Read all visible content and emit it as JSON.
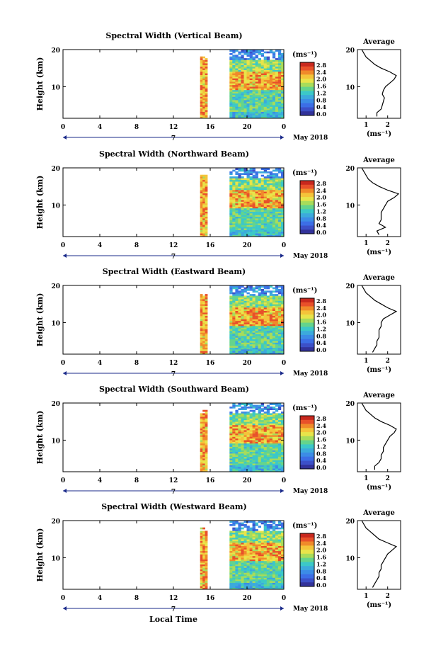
{
  "figure": {
    "xlabel": "Local Time",
    "date_label": "May 2018",
    "day_marker": "7"
  },
  "colorbar": {
    "unit": "(ms⁻¹)",
    "ticks": [
      "2.8",
      "2.4",
      "2.0",
      "1.6",
      "1.2",
      "0.8",
      "0.4",
      "0.0"
    ],
    "colors": [
      "#c8281e",
      "#e8502a",
      "#f08a2a",
      "#f4c43a",
      "#e8e44a",
      "#a8dc5a",
      "#64d48c",
      "#3cc8c8",
      "#3caadc",
      "#3c8ce6",
      "#3c6ee6",
      "#3c50c8",
      "#32329a"
    ]
  },
  "chart_data": [
    {
      "type": "heatmap",
      "title": "Spectral Width (Vertical Beam)",
      "xlabel": "",
      "ylabel": "Height (km)",
      "xlim": [
        0,
        24
      ],
      "ylim": [
        1.5,
        20
      ],
      "xticks": [
        "0",
        "4",
        "8",
        "12",
        "16",
        "20",
        "0"
      ],
      "yticks": [
        "10",
        "20"
      ],
      "data_blocks_hours": [
        [
          14.9,
          15.7
        ],
        [
          18.1,
          24.0
        ]
      ],
      "z_unit": "ms-1",
      "zlim": [
        0.0,
        2.8
      ],
      "profile": {
        "title": "Average",
        "xlabel": "(ms⁻¹)",
        "xticks": [
          "1",
          "2"
        ],
        "yticks": [
          "10",
          "20"
        ],
        "xlim": [
          0.6,
          2.6
        ],
        "heights": [
          2,
          3,
          4,
          5,
          6,
          7,
          8,
          9,
          10,
          11,
          12,
          13,
          14,
          15,
          16,
          17,
          18,
          19,
          20
        ],
        "values": [
          1.5,
          1.5,
          1.7,
          1.75,
          1.8,
          1.85,
          1.75,
          1.8,
          1.9,
          2.1,
          2.3,
          2.4,
          2.1,
          1.7,
          1.4,
          1.2,
          1.0,
          0.9,
          0.8
        ]
      }
    },
    {
      "type": "heatmap",
      "title": "Spectral Width (Northward Beam)",
      "xlabel": "",
      "ylabel": "Height (km)",
      "xlim": [
        0,
        24
      ],
      "ylim": [
        1.5,
        20
      ],
      "xticks": [
        "0",
        "4",
        "8",
        "12",
        "16",
        "20",
        "0"
      ],
      "yticks": [
        "10",
        "20"
      ],
      "data_blocks_hours": [
        [
          14.9,
          15.7
        ],
        [
          18.1,
          24.0
        ]
      ],
      "z_unit": "ms-1",
      "zlim": [
        0.0,
        2.8
      ],
      "profile": {
        "title": "Average",
        "xlabel": "(ms⁻¹)",
        "xticks": [
          "1",
          "2"
        ],
        "yticks": [
          "10",
          "20"
        ],
        "xlim": [
          0.6,
          2.6
        ],
        "heights": [
          2,
          3,
          4,
          5,
          6,
          7,
          8,
          9,
          10,
          11,
          12,
          13,
          14,
          15,
          16,
          17,
          18,
          19,
          20
        ],
        "values": [
          1.6,
          1.5,
          1.9,
          1.6,
          1.7,
          1.7,
          1.7,
          1.8,
          1.9,
          2.0,
          2.3,
          2.5,
          2.0,
          1.6,
          1.3,
          1.1,
          1.0,
          0.9,
          0.8
        ]
      }
    },
    {
      "type": "heatmap",
      "title": "Spectral Width (Eastward Beam)",
      "xlabel": "",
      "ylabel": "Height (km)",
      "xlim": [
        0,
        24
      ],
      "ylim": [
        1.5,
        20
      ],
      "xticks": [
        "0",
        "4",
        "8",
        "12",
        "16",
        "20",
        "0"
      ],
      "yticks": [
        "10",
        "20"
      ],
      "data_blocks_hours": [
        [
          14.9,
          15.7
        ],
        [
          18.1,
          24.0
        ]
      ],
      "z_unit": "ms-1",
      "zlim": [
        0.0,
        2.8
      ],
      "profile": {
        "title": "Average",
        "xlabel": "(ms⁻¹)",
        "xticks": [
          "1",
          "2"
        ],
        "yticks": [
          "10",
          "20"
        ],
        "xlim": [
          0.6,
          2.6
        ],
        "heights": [
          2,
          3,
          4,
          5,
          6,
          7,
          8,
          9,
          10,
          11,
          12,
          13,
          14,
          15,
          16,
          17,
          18,
          19,
          20
        ],
        "values": [
          1.3,
          1.4,
          1.5,
          1.5,
          1.6,
          1.6,
          1.6,
          1.7,
          1.7,
          1.8,
          2.1,
          2.4,
          2.0,
          1.7,
          1.4,
          1.2,
          1.0,
          0.9,
          0.8
        ]
      }
    },
    {
      "type": "heatmap",
      "title": "Spectral Width (Southward Beam)",
      "xlabel": "",
      "ylabel": "Height (km)",
      "xlim": [
        0,
        24
      ],
      "ylim": [
        1.5,
        20
      ],
      "xticks": [
        "0",
        "4",
        "8",
        "12",
        "16",
        "20",
        "0"
      ],
      "yticks": [
        "10",
        "20"
      ],
      "data_blocks_hours": [
        [
          14.9,
          15.7
        ],
        [
          18.1,
          24.0
        ]
      ],
      "z_unit": "ms-1",
      "zlim": [
        0.0,
        2.8
      ],
      "profile": {
        "title": "Average",
        "xlabel": "(ms⁻¹)",
        "xticks": [
          "1",
          "2"
        ],
        "yticks": [
          "10",
          "20"
        ],
        "xlim": [
          0.6,
          2.6
        ],
        "heights": [
          2,
          3,
          4,
          5,
          6,
          7,
          8,
          9,
          10,
          11,
          12,
          13,
          14,
          15,
          16,
          17,
          18,
          19,
          20
        ],
        "values": [
          1.4,
          1.4,
          1.6,
          1.7,
          1.7,
          1.8,
          1.8,
          1.9,
          2.0,
          2.1,
          2.3,
          2.4,
          2.1,
          1.7,
          1.4,
          1.2,
          1.0,
          0.9,
          0.8
        ]
      }
    },
    {
      "type": "heatmap",
      "title": "Spectral Width (Westward Beam)",
      "xlabel": "Local Time",
      "ylabel": "Height (km)",
      "xlim": [
        0,
        24
      ],
      "ylim": [
        1.5,
        20
      ],
      "xticks": [
        "0",
        "4",
        "8",
        "12",
        "16",
        "20",
        "0"
      ],
      "yticks": [
        "10",
        "20"
      ],
      "data_blocks_hours": [
        [
          14.9,
          15.7
        ],
        [
          18.1,
          24.0
        ]
      ],
      "z_unit": "ms-1",
      "zlim": [
        0.0,
        2.8
      ],
      "profile": {
        "title": "Average",
        "xlabel": "(ms⁻¹)",
        "xticks": [
          "1",
          "2"
        ],
        "yticks": [
          "10",
          "20"
        ],
        "xlim": [
          0.6,
          2.6
        ],
        "heights": [
          2,
          3,
          4,
          5,
          6,
          7,
          8,
          9,
          10,
          11,
          12,
          13,
          14,
          15,
          16,
          17,
          18,
          19,
          20
        ],
        "values": [
          1.3,
          1.4,
          1.5,
          1.6,
          1.6,
          1.7,
          1.7,
          1.8,
          1.9,
          2.0,
          2.2,
          2.4,
          2.0,
          1.6,
          1.4,
          1.2,
          1.0,
          0.9,
          0.8
        ]
      }
    }
  ]
}
